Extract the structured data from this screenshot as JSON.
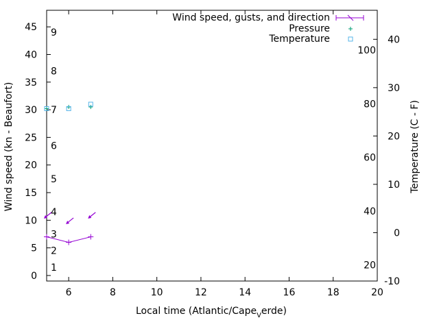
{
  "chart_data": {
    "type": "line",
    "xlabel": "Local time (Atlantic/Cape_Verde)",
    "xlabel_parts": {
      "before": "Local time (Atlantic/Cape",
      "sub": "V",
      "after": "erde)"
    },
    "ylabel": "Wind speed (kn - Beaufort)",
    "y2label": "Temperature (C - F)",
    "xlim": [
      5,
      20
    ],
    "ylim": [
      -1,
      48
    ],
    "y2lim": [
      -10,
      46
    ],
    "xticks": [
      "6",
      "8",
      "10",
      "12",
      "14",
      "16",
      "18",
      "20"
    ],
    "yticks": [
      "0",
      "5",
      "10",
      "15",
      "20",
      "25",
      "30",
      "35",
      "40",
      "45"
    ],
    "y2ticks": [
      "-10",
      "0",
      "10",
      "20",
      "30",
      "40"
    ],
    "beaufort": [
      "1",
      "2",
      "3",
      "4",
      "5",
      "6",
      "7",
      "8",
      "9"
    ],
    "fahrenheit": [
      "20",
      "40",
      "60",
      "80",
      "100"
    ],
    "legend": {
      "position": "top-right",
      "entries": [
        "Wind speed, gusts, and direction",
        "Pressure",
        "Temperature"
      ]
    },
    "colors": {
      "wind": "#9400d3",
      "pressure": "#009e73",
      "temperature": "#56b4e9"
    },
    "series": [
      {
        "name": "Wind speed, gusts, and direction",
        "x": [
          5.0,
          6.0,
          7.0
        ],
        "values": [
          7.0,
          6.0,
          7.0
        ],
        "arrow_y": [
          10.8,
          9.8,
          10.8
        ]
      },
      {
        "name": "Pressure",
        "x": [
          5.0,
          6.0,
          7.0
        ],
        "values": [
          30.2,
          30.5,
          30.5
        ]
      },
      {
        "name": "Temperature",
        "x": [
          5.0,
          6.0,
          7.0
        ],
        "values": [
          30.2,
          30.2,
          31.0
        ]
      }
    ]
  }
}
